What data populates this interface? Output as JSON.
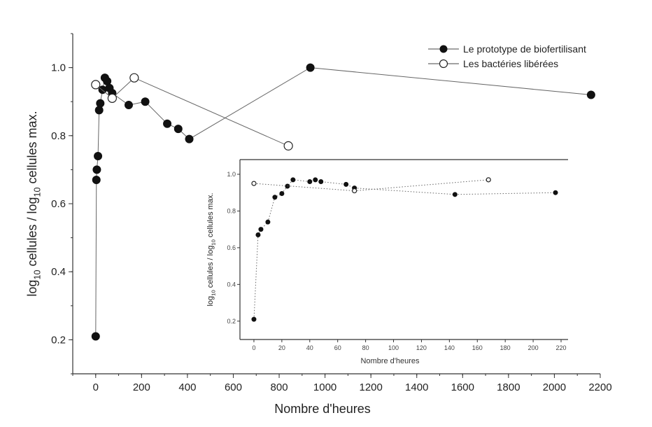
{
  "chart_data": [
    {
      "type": "scatter",
      "xlabel": "Nombre d'heures",
      "ylabel": "log10 cellules / log10 cellules max.",
      "xlim": [
        -100,
        2200
      ],
      "ylim": [
        0.1,
        1.1
      ],
      "xticks": [
        0,
        200,
        400,
        600,
        800,
        1000,
        1200,
        1400,
        1600,
        1800,
        2000,
        2200
      ],
      "yticks": [
        0.2,
        0.4,
        0.6,
        0.8,
        1.0
      ],
      "ytick_labels": [
        "0.2",
        "0.4",
        "0.6",
        "0.8",
        "1.0"
      ],
      "legend_position": "top-right",
      "series": [
        {
          "name": "Le prototype de biofertilisant",
          "marker": "filled-circle",
          "x": [
            0,
            3,
            5,
            10,
            15,
            20,
            30,
            40,
            50,
            60,
            72,
            144,
            216,
            312,
            360,
            408,
            936,
            2160
          ],
          "y": [
            0.21,
            0.67,
            0.7,
            0.74,
            0.875,
            0.895,
            0.935,
            0.97,
            0.96,
            0.94,
            0.925,
            0.89,
            0.9,
            0.835,
            0.82,
            0.79,
            1.0,
            0.92
          ]
        },
        {
          "name": "Les bactéries libérées",
          "marker": "open-circle",
          "x": [
            0,
            72,
            168,
            840
          ],
          "y": [
            0.95,
            0.91,
            0.97,
            0.77
          ]
        }
      ]
    },
    {
      "type": "scatter",
      "xlabel": "Nombre d'heures",
      "ylabel": "log10 cellules / log10 cellules max.",
      "xlim": [
        -10,
        225
      ],
      "ylim": [
        0.1,
        1.08
      ],
      "xticks": [
        0,
        20,
        40,
        60,
        80,
        100,
        120,
        140,
        160,
        180,
        200,
        220
      ],
      "yticks": [
        0.2,
        0.4,
        0.6,
        0.8,
        1.0
      ],
      "ytick_labels": [
        "0.2",
        "0.4",
        "0.6",
        "0.8",
        "1.0"
      ],
      "series": [
        {
          "marker": "filled-circle",
          "x": [
            0,
            3,
            5,
            10,
            15,
            20,
            24,
            28,
            40,
            44,
            48,
            66,
            72,
            144,
            216
          ],
          "y": [
            0.21,
            0.67,
            0.7,
            0.74,
            0.875,
            0.895,
            0.935,
            0.97,
            0.96,
            0.97,
            0.96,
            0.945,
            0.925,
            0.89,
            0.9
          ]
        },
        {
          "marker": "open-circle",
          "x": [
            0,
            72,
            168
          ],
          "y": [
            0.95,
            0.91,
            0.97
          ]
        }
      ]
    }
  ]
}
